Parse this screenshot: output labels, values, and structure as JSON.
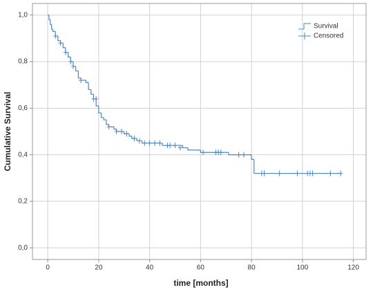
{
  "chart_data": {
    "type": "kaplan-meier",
    "x_label": "time [months]",
    "y_label": "Cumulative Survival",
    "xlim": [
      -6,
      125
    ],
    "ylim": [
      -0.05,
      1.05
    ],
    "xticks": [
      0,
      20,
      40,
      60,
      80,
      100,
      120
    ],
    "yticks": [
      {
        "value": 0,
        "label": "0,0"
      },
      {
        "value": 0.2,
        "label": "0,2"
      },
      {
        "value": 0.4,
        "label": "0,4"
      },
      {
        "value": 0.6,
        "label": "0,6"
      },
      {
        "value": 0.8,
        "label": "0,8"
      },
      {
        "value": 1,
        "label": "1,0"
      }
    ],
    "grid": true,
    "legend_position": "upper-right",
    "series": [
      {
        "name": "Survival",
        "color": "#4a86c5",
        "marker": "step",
        "x": [
          0,
          0.5,
          1,
          1.5,
          2,
          3,
          4,
          5,
          6,
          7,
          8,
          9,
          10,
          11,
          12,
          13,
          15,
          16,
          17,
          18,
          19,
          20,
          21,
          22,
          23,
          24,
          26,
          27,
          30,
          32,
          33,
          35,
          37,
          45,
          53,
          55,
          60,
          71,
          80,
          81,
          115
        ],
        "values": [
          1.0,
          0.98,
          0.96,
          0.94,
          0.93,
          0.91,
          0.89,
          0.88,
          0.86,
          0.84,
          0.82,
          0.8,
          0.78,
          0.76,
          0.73,
          0.72,
          0.71,
          0.68,
          0.66,
          0.64,
          0.61,
          0.58,
          0.56,
          0.55,
          0.53,
          0.52,
          0.51,
          0.5,
          0.49,
          0.48,
          0.47,
          0.46,
          0.45,
          0.44,
          0.43,
          0.42,
          0.41,
          0.4,
          0.38,
          0.32,
          0.32
        ]
      },
      {
        "name": "Censored",
        "color": "#4a86c5",
        "marker": "plus",
        "x": [
          3,
          5,
          7,
          9,
          10,
          13,
          18,
          19,
          24,
          27,
          29,
          31,
          34,
          36,
          38,
          40,
          42,
          44,
          47,
          48,
          50,
          52,
          61,
          66,
          67,
          68,
          75,
          77,
          84,
          85,
          91,
          98,
          102,
          103,
          104,
          111,
          115
        ],
        "values": [
          0.91,
          0.88,
          0.84,
          0.8,
          0.78,
          0.72,
          0.64,
          0.64,
          0.52,
          0.5,
          0.5,
          0.49,
          0.47,
          0.46,
          0.45,
          0.45,
          0.45,
          0.45,
          0.44,
          0.44,
          0.44,
          0.43,
          0.41,
          0.41,
          0.41,
          0.41,
          0.4,
          0.4,
          0.32,
          0.32,
          0.32,
          0.32,
          0.32,
          0.32,
          0.32,
          0.32,
          0.32
        ]
      }
    ]
  }
}
